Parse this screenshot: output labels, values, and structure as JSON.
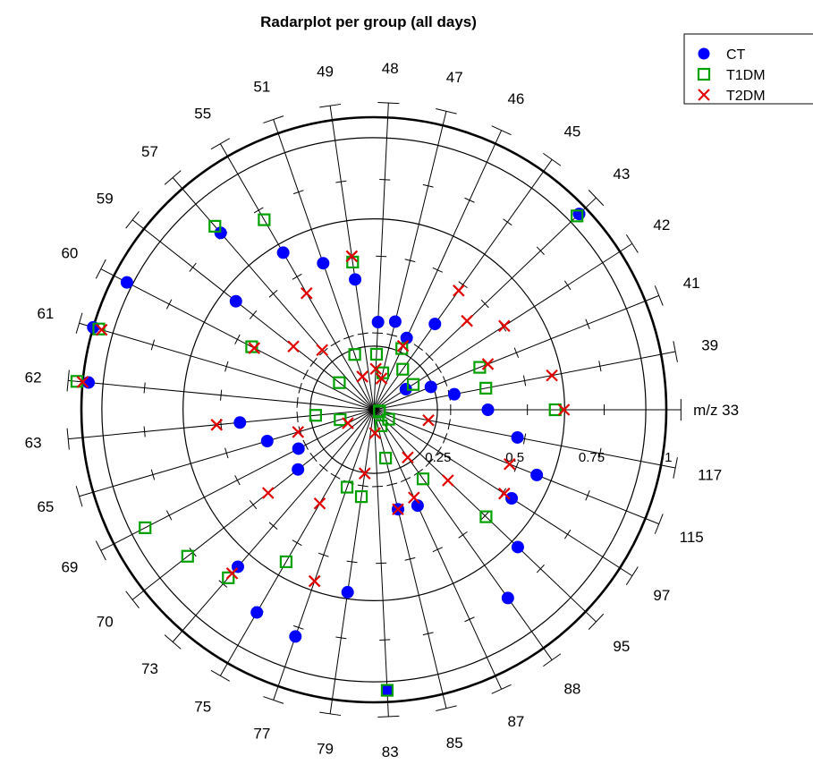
{
  "chart_data": {
    "type": "radar",
    "title": "Radarplot per group (all days)",
    "categories": [
      "m/z 33",
      "39",
      "41",
      "42",
      "43",
      "45",
      "46",
      "47",
      "48",
      "49",
      "51",
      "55",
      "57",
      "59",
      "60",
      "61",
      "62",
      "63",
      "65",
      "69",
      "70",
      "73",
      "75",
      "77",
      "79",
      "83",
      "85",
      "87",
      "88",
      "95",
      "97",
      "115",
      "117"
    ],
    "radial_ticks": [
      "0.25",
      "0.5",
      "0.75",
      "1"
    ],
    "rlim": [
      0,
      1
    ],
    "grid": true,
    "legend_position": "top-right",
    "series": [
      {
        "name": "CT",
        "marker": "filled-circle",
        "color": "#0000ff",
        "values": [
          0.39,
          0.28,
          0.21,
          0.13,
          0.97,
          0.36,
          0.27,
          0.31,
          0.3,
          0.45,
          0.53,
          0.62,
          0.8,
          0.6,
          0.95,
          1.0,
          0.98,
          0.46,
          0.38,
          0.29,
          0.33,
          0.71,
          0.8,
          0.82,
          0.63,
          0.96,
          0.35,
          0.36,
          0.79,
          0.68,
          0.56,
          0.6,
          0.5
        ]
      },
      {
        "name": "T1DM",
        "marker": "open-square",
        "color": "#00a000",
        "values": [
          0.62,
          0.39,
          0.39,
          0.16,
          0.96,
          0.17,
          0.23,
          0.13,
          0.19,
          0.51,
          0.2,
          0.75,
          0.83,
          0.15,
          0.47,
          0.98,
          1.02,
          0.2,
          0.12,
          0.88,
          0.81,
          0.76,
          0.6,
          0.28,
          0.3,
          0.96,
          0.17,
          0.06,
          0.29,
          0.53,
          0.06,
          0.02,
          0.02
        ]
      },
      {
        "name": "T2DM",
        "marker": "x",
        "color": "#e00000",
        "values": [
          0.65,
          0.62,
          0.42,
          0.53,
          0.44,
          0.5,
          0.24,
          0.11,
          0.14,
          0.53,
          0.12,
          0.46,
          0.27,
          0.35,
          0.46,
          0.97,
          1.0,
          0.54,
          0.27,
          0.1,
          0.46,
          0.74,
          0.37,
          0.62,
          0.22,
          0.08,
          0.35,
          0.33,
          0.2,
          0.35,
          0.53,
          0.5,
          0.19
        ]
      }
    ]
  }
}
